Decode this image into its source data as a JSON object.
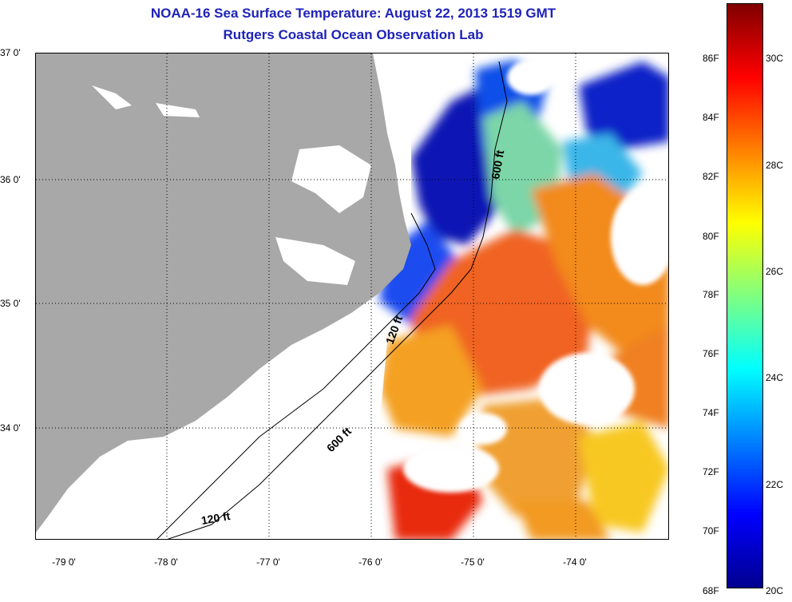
{
  "title": {
    "line1": "NOAA-16 Sea Surface Temperature:  August 22, 2013 1519 GMT",
    "line2": "Rutgers Coastal Ocean Observation Lab"
  },
  "map": {
    "lat_labels": [
      "37 0'",
      "36 0'",
      "35 0'",
      "34 0'"
    ],
    "lon_labels": [
      "-79 0'",
      "-78 0'",
      "-77 0'",
      "-76 0'",
      "-75 0'",
      "-74 0'"
    ],
    "isobath_labels": [
      "600 ft",
      "120 ft",
      "600 ft",
      "120 ft"
    ],
    "colors": {
      "land": "#a8a8a8",
      "cloud": "#ffffff",
      "grid": "#000000"
    }
  },
  "colorbar": {
    "fahrenheit": [
      "86F",
      "84F",
      "82F",
      "80F",
      "78F",
      "76F",
      "74F",
      "72F",
      "70F",
      "68F"
    ],
    "celsius": [
      "30C",
      "28C",
      "26C",
      "24C",
      "22C",
      "20C"
    ],
    "colors": [
      "#00008f",
      "#0000ff",
      "#0080ff",
      "#00ffff",
      "#80ff80",
      "#ffff00",
      "#ff8000",
      "#ff0000",
      "#800000"
    ]
  }
}
